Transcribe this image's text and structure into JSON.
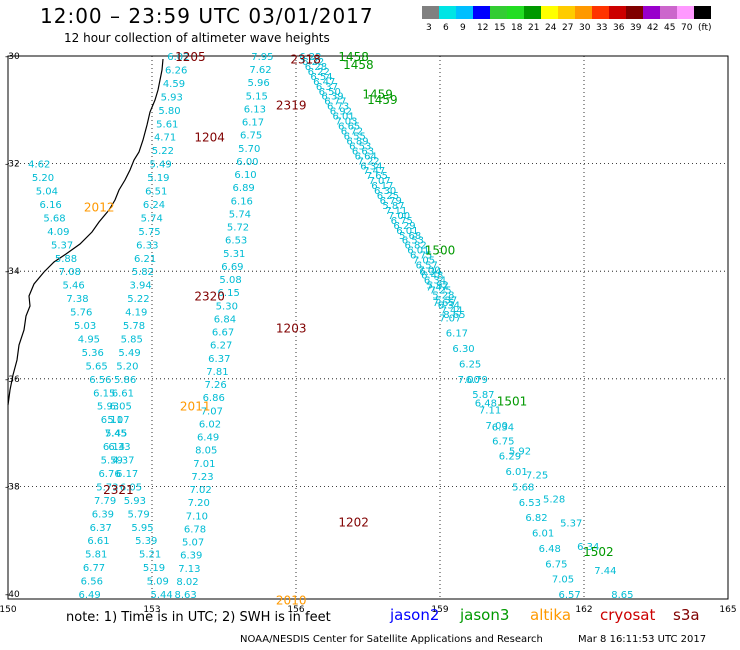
{
  "header": {
    "title": "12:00 – 23:59 UTC 03/01/2017",
    "subtitle": "12 hour collection of altimeter wave heights"
  },
  "colorbar": {
    "colors": [
      "#808080",
      "#00e5e5",
      "#00bfff",
      "#0000ff",
      "#33cc33",
      "#22dd22",
      "#009900",
      "#ffff00",
      "#ffcc00",
      "#ff9900",
      "#ff3300",
      "#cc0000",
      "#800000",
      "#9900cc",
      "#cc66cc",
      "#ff99ff",
      "#000000"
    ],
    "labels": [
      "3",
      "6",
      "9",
      "12",
      "15",
      "18",
      "21",
      "24",
      "27",
      "30",
      "33",
      "36",
      "39",
      "42",
      "45",
      "70",
      "(ft)"
    ]
  },
  "map": {
    "lon_range": [
      150,
      165
    ],
    "lat_range": [
      -40,
      -30
    ],
    "lon_ticks": [
      "150",
      "153",
      "156",
      "159",
      "162",
      "165"
    ],
    "lat_ticks": [
      "-30",
      "-32",
      "-34",
      "-36",
      "-38",
      "-40"
    ],
    "colors": {
      "jason2": "#0000ff",
      "jason3": "#009900",
      "altika": "#ff9900",
      "cryosat": "#cc0000",
      "s3a": "#800000",
      "swh": "#00bcd4"
    },
    "pass_labels": [
      {
        "text": "1205",
        "lon": 153.8,
        "lat": -30.0,
        "mission": "s3a"
      },
      {
        "text": "2318",
        "lon": 156.2,
        "lat": -30.05,
        "mission": "s3a"
      },
      {
        "text": "1458",
        "lon": 157.2,
        "lat": -30.0,
        "mission": "jason3"
      },
      {
        "text": "1458",
        "lon": 157.3,
        "lat": -30.15,
        "mission": "jason3"
      },
      {
        "text": "1459",
        "lon": 157.7,
        "lat": -30.7,
        "mission": "jason3"
      },
      {
        "text": "1459",
        "lon": 157.8,
        "lat": -30.8,
        "mission": "jason3"
      },
      {
        "text": "2319",
        "lon": 155.9,
        "lat": -30.9,
        "mission": "s3a"
      },
      {
        "text": "1204",
        "lon": 154.2,
        "lat": -31.5,
        "mission": "s3a"
      },
      {
        "text": "2012",
        "lon": 151.9,
        "lat": -32.8,
        "mission": "altika"
      },
      {
        "text": "1500",
        "lon": 159.0,
        "lat": -33.6,
        "mission": "jason3"
      },
      {
        "text": "2320",
        "lon": 154.2,
        "lat": -34.45,
        "mission": "s3a"
      },
      {
        "text": "1203",
        "lon": 155.9,
        "lat": -35.05,
        "mission": "s3a"
      },
      {
        "text": "2011",
        "lon": 153.9,
        "lat": -36.5,
        "mission": "altika"
      },
      {
        "text": "1501",
        "lon": 160.5,
        "lat": -36.4,
        "mission": "jason3"
      },
      {
        "text": "2321",
        "lon": 152.3,
        "lat": -38.05,
        "mission": "s3a"
      },
      {
        "text": "1202",
        "lon": 157.2,
        "lat": -38.65,
        "mission": "s3a"
      },
      {
        "text": "1502",
        "lon": 162.3,
        "lat": -39.2,
        "mission": "jason3"
      },
      {
        "text": "2010",
        "lon": 155.9,
        "lat": -40.1,
        "mission": "altika"
      }
    ],
    "swh_tracks": [
      {
        "lon_start": 153.55,
        "lat_start": -30.0,
        "lon_end": 151.7,
        "lat_end": -40.0,
        "values": [
          "6.02",
          "6.26",
          "4.59",
          "5.93",
          "5.80",
          "5.61",
          "4.71",
          "5.22",
          "5.49",
          "5.19",
          "6.51",
          "6.24",
          "5.74",
          "5.75",
          "6.33",
          "6.21",
          "5.82",
          "3.94",
          "5.22",
          "4.19",
          "5.78",
          "5.85",
          "5.49",
          "5.20",
          "5.86",
          "6.61",
          "6.05",
          "5.07",
          "5.45",
          "6.14",
          "5.59",
          "6.76",
          "5.73",
          "7.79",
          "6.39",
          "6.37",
          "6.61",
          "5.81",
          "6.77",
          "6.56",
          "6.49"
        ]
      },
      {
        "lon_start": 155.3,
        "lat_start": -30.0,
        "lon_end": 153.7,
        "lat_end": -40.0,
        "values": [
          "7.95",
          "7.62",
          "5.96",
          "5.15",
          "6.13",
          "6.17",
          "6.75",
          "5.70",
          "6.00",
          "6.10",
          "6.89",
          "6.16",
          "5.74",
          "5.72",
          "6.53",
          "5.31",
          "6.69",
          "5.08",
          "6.15",
          "5.30",
          "6.84",
          "6.67",
          "6.27",
          "6.37",
          "7.81",
          "7.26",
          "6.86",
          "7.07",
          "6.02",
          "6.49",
          "8.05",
          "7.01",
          "7.23",
          "7.02",
          "7.20",
          "7.10",
          "6.78",
          "5.07",
          "6.39",
          "7.13",
          "8.02",
          "8.63"
        ]
      },
      {
        "lon_start": 150.65,
        "lat_start": -32.0,
        "lon_end": 153.2,
        "lat_end": -40.0,
        "values": [
          "4.62",
          "5.20",
          "5.04",
          "6.16",
          "5.68",
          "4.09",
          "5.37",
          "5.88",
          "7.08",
          "5.46",
          "7.38",
          "5.76",
          "5.03",
          "4.95",
          "5.36",
          "5.65",
          "6.56",
          "6.15",
          "5.93",
          "6.11",
          "7.45",
          "6.33",
          "4.37",
          "6.17",
          "6.05",
          "5.93",
          "5.79",
          "5.95",
          "5.39",
          "5.21",
          "5.19",
          "5.09",
          "5.44"
        ]
      },
      {
        "lon_start": 156.3,
        "lat_start": -30.0,
        "lon_end": 159.3,
        "lat_end": -34.8,
        "values": [
          "6.22",
          "6.22",
          "6.28",
          "6.22",
          "6.54",
          "6.47",
          "6.37",
          "6.50",
          "6.39",
          "6.77",
          "6.73",
          "6.92",
          "6.01",
          "7.03",
          "6.65",
          "6.72",
          "6.55",
          "6.89",
          "6.53",
          "6.63",
          "6.64",
          "7.22",
          "6.34",
          "7.47",
          "7.65",
          "7.07",
          "6.17",
          "6.30",
          "6.25",
          "6.79",
          "5.87",
          "7.11",
          "7.00",
          "6.75",
          "6.29",
          "6.01",
          "5.68",
          "6.53",
          "6.82",
          "6.01",
          "6.75",
          "7.05",
          "6.57",
          "7.00",
          "6.48",
          "6.34",
          "5.92",
          "7.25",
          "5.28",
          "5.37",
          "6.34",
          "7.44",
          "8.65"
        ]
      },
      {
        "lon_start": 158.8,
        "lat_start": -34.0,
        "lon_end": 161.7,
        "lat_end": -40.0,
        "values": [
          "6.34",
          "7.47",
          "7.65",
          "7.07",
          "6.17",
          "6.30",
          "6.25",
          "6.79",
          "5.87",
          "7.11",
          "7.00",
          "6.75",
          "6.29",
          "6.01",
          "5.68",
          "6.53",
          "6.82",
          "6.01",
          "6.48",
          "6.75",
          "7.05",
          "6.57"
        ]
      },
      {
        "lon_start": 159.6,
        "lat_start": -36.0,
        "lon_end": 162.8,
        "lat_end": -40.0,
        "values": [
          "7.00",
          "6.48",
          "6.34",
          "5.92",
          "7.25",
          "5.28",
          "5.37",
          "6.34",
          "7.44",
          "8.65"
        ]
      }
    ]
  },
  "legend": {
    "note": "note: 1) Time is in UTC; 2) SWH is in feet",
    "missions": [
      "jason2",
      "jason3",
      "altika",
      "cryosat",
      "s3a"
    ]
  },
  "footer": {
    "credit": "NOAA/NESDIS Center for Satellite Applications and Research",
    "timestamp": "Mar  8 16:11:53 UTC 2017"
  }
}
